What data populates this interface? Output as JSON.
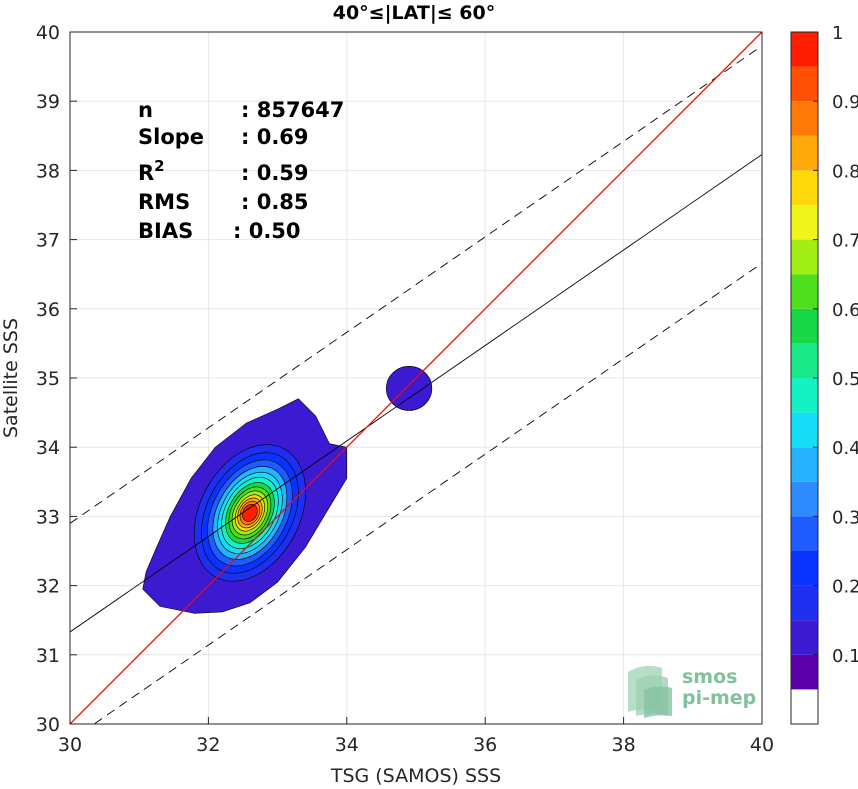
{
  "chart_data": {
    "type": "heatmap",
    "title": "40°≤|LAT|≤ 60°",
    "xlabel": "TSG (SAMOS) SSS",
    "ylabel": "Satellite SSS",
    "xlim": [
      30,
      40
    ],
    "ylim": [
      30,
      40
    ],
    "xticks": [
      "30",
      "32",
      "34",
      "36",
      "38",
      "40"
    ],
    "yticks": [
      "30",
      "31",
      "32",
      "33",
      "34",
      "35",
      "36",
      "37",
      "38",
      "39",
      "40"
    ],
    "grid": true,
    "stats": [
      {
        "name": "n",
        "sep": ": ",
        "value": "857647"
      },
      {
        "name": "Slope",
        "sep": ": ",
        "value": "0.69"
      },
      {
        "name": "R",
        "sup": "2",
        "sep": ": ",
        "value": "0.59"
      },
      {
        "name": "RMS",
        "sep": ": ",
        "value": "0.85"
      },
      {
        "name": "BIAS",
        "sep": ": ",
        "value": "0.50"
      }
    ],
    "lines": {
      "identity": {
        "x": [
          30,
          40
        ],
        "y": [
          30,
          40
        ],
        "color": "#ff0000"
      },
      "regression": {
        "x": [
          30,
          40
        ],
        "y": [
          31.33,
          38.23
        ],
        "color": "#000000"
      },
      "upper_bound": {
        "x": [
          30,
          40
        ],
        "y": [
          32.9,
          39.8
        ],
        "color": "#000000",
        "style": "dashed"
      },
      "lower_bound": {
        "x": [
          30,
          40
        ],
        "y": [
          29.76,
          36.66
        ],
        "color": "#000000",
        "style": "dashed"
      }
    },
    "density_peak": {
      "x": 32.6,
      "y": 33.05
    },
    "secondary_cluster": {
      "x": 34.9,
      "y": 34.85
    },
    "colorbar": {
      "range": [
        0,
        1
      ],
      "ticks": [
        "0.1",
        "0.2",
        "0.3",
        "0.4",
        "0.5",
        "0.6",
        "0.7",
        "0.8",
        "0.9",
        "1"
      ],
      "colors": [
        "#ffffff",
        "#5a00a8",
        "#3c1ad2",
        "#1e2ff0",
        "#0a33ff",
        "#1e5cff",
        "#2f8cff",
        "#27b2ff",
        "#16ddf7",
        "#14f2c4",
        "#18e888",
        "#18d84a",
        "#50df1c",
        "#a0ee14",
        "#f0f41a",
        "#ffd80c",
        "#ffa90a",
        "#ff7a08",
        "#ff5005",
        "#ff1f00",
        "#e10000",
        "#a00000"
      ]
    }
  },
  "logo": {
    "line1": "smos",
    "line2": "pi-mep"
  }
}
